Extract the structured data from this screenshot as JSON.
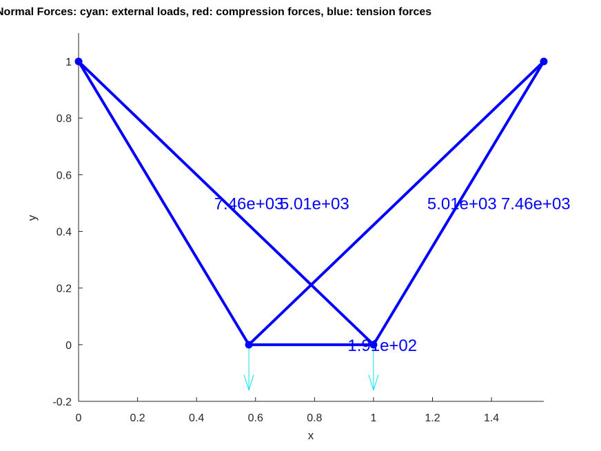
{
  "chart_data": {
    "type": "truss-plot",
    "title": "Normal Forces: cyan: external loads, red: compression forces, blue: tension forces",
    "xlabel": "x",
    "ylabel": "y",
    "xlim": [
      0,
      1.5774
    ],
    "ylim": [
      -0.2,
      1.1
    ],
    "xticks": [
      0,
      0.2,
      0.4,
      0.6,
      0.8,
      1,
      1.2,
      1.4
    ],
    "xtick_labels": [
      "0",
      "0.2",
      "0.4",
      "0.6",
      "0.8",
      "1",
      "1.2",
      "1.4"
    ],
    "yticks": [
      -0.2,
      0,
      0.2,
      0.4,
      0.6,
      0.8,
      1
    ],
    "ytick_labels": [
      "-0.2",
      "0",
      "0.2",
      "0.4",
      "0.6",
      "0.8",
      "1"
    ],
    "grid": false,
    "colors": {
      "tension": "#0000ff",
      "compression": "#ff0000",
      "external_load": "#00e5ee",
      "axis": "#262626"
    },
    "nodes": [
      {
        "x": 0,
        "y": 1
      },
      {
        "x": 1.5774,
        "y": 1
      },
      {
        "x": 0.5774,
        "y": 0
      },
      {
        "x": 1,
        "y": 0
      }
    ],
    "members": [
      {
        "from": 0,
        "to": 2,
        "force_label": "7.46e+03",
        "label_x": 0.5774,
        "label_y": 0.5,
        "kind": "tension"
      },
      {
        "from": 0,
        "to": 3,
        "force_label": "5.01e+03",
        "label_x": 0.8,
        "label_y": 0.5,
        "kind": "tension"
      },
      {
        "from": 1,
        "to": 2,
        "force_label": "5.01e+03",
        "label_x": 1.3,
        "label_y": 0.5,
        "kind": "tension"
      },
      {
        "from": 1,
        "to": 3,
        "force_label": "7.46e+03",
        "label_x": 1.55,
        "label_y": 0.5,
        "kind": "tension"
      },
      {
        "from": 2,
        "to": 3,
        "force_label": "1.91e+02",
        "label_x": 1.03,
        "label_y": 0,
        "kind": "tension"
      }
    ],
    "loads": [
      {
        "x": 0.5774,
        "y": 0,
        "dx": 0,
        "dy": -0.16
      },
      {
        "x": 1,
        "y": 0,
        "dx": 0,
        "dy": -0.16
      }
    ]
  }
}
